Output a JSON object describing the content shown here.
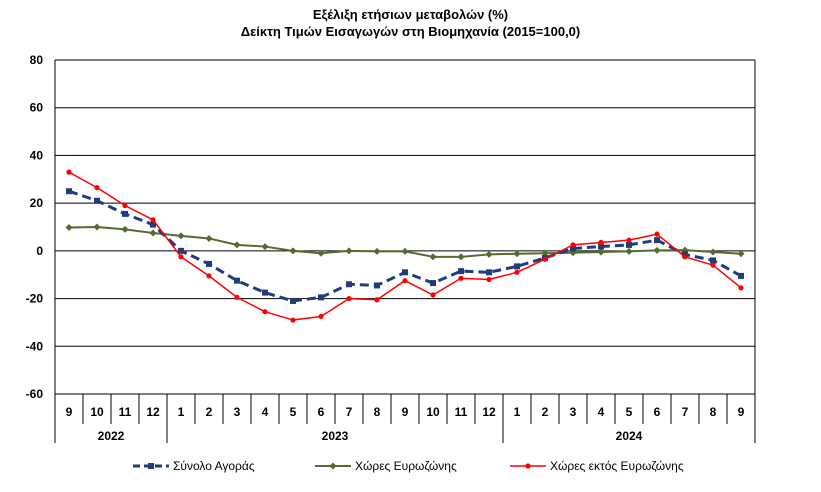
{
  "chart_data": {
    "type": "line",
    "title": "Εξέλιξη ετήσιων μεταβολών (%)",
    "subtitle": "Δείκτη Τιμών Εισαγωγών στη Βιομηχανία (2015=100,0)",
    "xlabel": "",
    "ylabel": "",
    "ylim": [
      -60,
      80
    ],
    "yticks": [
      80,
      60,
      40,
      20,
      0,
      -20,
      -40,
      -60
    ],
    "grid": true,
    "legend_position": "bottom",
    "categories": [
      "9",
      "10",
      "11",
      "12",
      "1",
      "2",
      "3",
      "4",
      "5",
      "6",
      "7",
      "8",
      "9",
      "10",
      "11",
      "12",
      "1",
      "2",
      "3",
      "4",
      "5",
      "6",
      "7",
      "8",
      "9"
    ],
    "year_groups": [
      {
        "label": "2022",
        "count": 4
      },
      {
        "label": "2023",
        "count": 12
      },
      {
        "label": "2024",
        "count": 9
      }
    ],
    "series": [
      {
        "name": "Σύνολο Αγοράς",
        "color": "#1f3d7a",
        "style": "dashed",
        "marker": "square",
        "values": [
          25.0,
          21.0,
          15.5,
          11.0,
          0.0,
          -5.5,
          -12.5,
          -17.5,
          -21.0,
          -19.5,
          -14.0,
          -14.5,
          -9.0,
          -13.5,
          -8.5,
          -9.0,
          -6.5,
          -3.0,
          1.0,
          1.8,
          2.5,
          4.5,
          -1.5,
          -4.0,
          -10.5
        ]
      },
      {
        "name": "Χώρες Ευρωζώνης",
        "color": "#556b2f",
        "style": "solid",
        "marker": "diamond",
        "values": [
          9.8,
          10.0,
          9.0,
          7.5,
          6.3,
          5.2,
          2.5,
          1.8,
          0.0,
          -1.0,
          0.0,
          -0.2,
          -0.2,
          -2.5,
          -2.5,
          -1.5,
          -1.2,
          -1.0,
          -0.8,
          -0.5,
          -0.2,
          0.2,
          0.3,
          -0.5,
          -1.2
        ]
      },
      {
        "name": "Χώρες εκτός Ευρωζώνης",
        "color": "#ff0000",
        "style": "solid",
        "marker": "circle",
        "values": [
          33.0,
          26.5,
          19.0,
          13.0,
          -2.5,
          -10.5,
          -19.5,
          -25.5,
          -29.0,
          -27.5,
          -20.0,
          -20.5,
          -12.5,
          -18.5,
          -11.5,
          -12.0,
          -9.0,
          -3.5,
          2.5,
          3.5,
          4.5,
          7.0,
          -2.5,
          -6.0,
          -15.5
        ]
      }
    ]
  }
}
